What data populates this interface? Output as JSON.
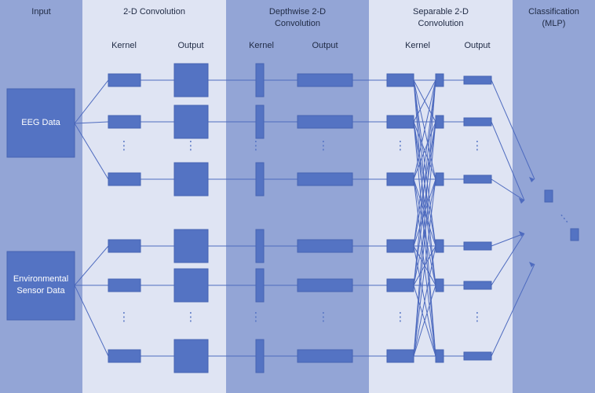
{
  "colors": {
    "band_dark": "#93a5d6",
    "band_light": "#dfe4f3",
    "block": "#5473c3",
    "block_border": "#4663b3",
    "line": "#4e6bbf",
    "text": "#1f2a44"
  },
  "columns": {
    "input": "Input",
    "conv2d": "2-D Convolution",
    "depthwise": "Depthwise 2-D\nConvolution",
    "separable": "Separable 2-D\nConvolution",
    "classification": "Classification\n(MLP)"
  },
  "sublabels": {
    "conv_kernel": "Kernel",
    "conv_output": "Output",
    "dw_kernel": "Kernel",
    "dw_output": "Output",
    "sep_kernel": "Kernel",
    "sep_output": "Output"
  },
  "inputs": {
    "eeg": "EEG Data",
    "env": "Environmental\nSensor Data"
  },
  "ellipsis": "⋮"
}
